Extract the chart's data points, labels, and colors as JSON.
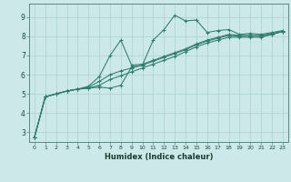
{
  "xlabel": "Humidex (Indice chaleur)",
  "bg_color": "#cce8e8",
  "grid_color": "#aad0d0",
  "line_color": "#2e7d6e",
  "xlim": [
    -0.5,
    23.5
  ],
  "ylim": [
    2.5,
    9.7
  ],
  "xticks": [
    0,
    1,
    2,
    3,
    4,
    5,
    6,
    7,
    8,
    9,
    10,
    11,
    12,
    13,
    14,
    15,
    16,
    17,
    18,
    19,
    20,
    21,
    22,
    23
  ],
  "yticks": [
    3,
    4,
    5,
    6,
    7,
    8,
    9
  ],
  "series1": [
    [
      0,
      2.75
    ],
    [
      1,
      4.85
    ],
    [
      2,
      5.0
    ],
    [
      3,
      5.15
    ],
    [
      4,
      5.25
    ],
    [
      5,
      5.3
    ],
    [
      6,
      5.35
    ],
    [
      7,
      5.3
    ],
    [
      8,
      5.45
    ],
    [
      9,
      6.4
    ],
    [
      10,
      6.5
    ],
    [
      11,
      7.8
    ],
    [
      12,
      8.35
    ],
    [
      13,
      9.1
    ],
    [
      14,
      8.8
    ],
    [
      15,
      8.85
    ],
    [
      16,
      8.2
    ],
    [
      17,
      8.3
    ],
    [
      18,
      8.35
    ],
    [
      19,
      8.1
    ],
    [
      20,
      8.15
    ],
    [
      21,
      8.1
    ],
    [
      22,
      8.2
    ],
    [
      23,
      8.3
    ]
  ],
  "series2": [
    [
      0,
      2.75
    ],
    [
      1,
      4.85
    ],
    [
      2,
      5.0
    ],
    [
      3,
      5.15
    ],
    [
      4,
      5.25
    ],
    [
      5,
      5.4
    ],
    [
      6,
      5.9
    ],
    [
      7,
      7.0
    ],
    [
      8,
      7.8
    ],
    [
      9,
      6.5
    ],
    [
      10,
      6.55
    ],
    [
      11,
      6.75
    ],
    [
      12,
      6.95
    ],
    [
      13,
      7.15
    ],
    [
      14,
      7.35
    ],
    [
      15,
      7.6
    ],
    [
      16,
      7.8
    ],
    [
      17,
      7.95
    ],
    [
      18,
      8.1
    ],
    [
      19,
      8.05
    ],
    [
      20,
      8.05
    ],
    [
      21,
      8.05
    ],
    [
      22,
      8.15
    ],
    [
      23,
      8.25
    ]
  ],
  "series3": [
    [
      0,
      2.75
    ],
    [
      1,
      4.85
    ],
    [
      2,
      5.0
    ],
    [
      3,
      5.15
    ],
    [
      4,
      5.25
    ],
    [
      5,
      5.35
    ],
    [
      6,
      5.65
    ],
    [
      7,
      6.0
    ],
    [
      8,
      6.2
    ],
    [
      9,
      6.35
    ],
    [
      10,
      6.5
    ],
    [
      11,
      6.7
    ],
    [
      12,
      6.9
    ],
    [
      13,
      7.1
    ],
    [
      14,
      7.3
    ],
    [
      15,
      7.55
    ],
    [
      16,
      7.75
    ],
    [
      17,
      7.9
    ],
    [
      18,
      8.05
    ],
    [
      19,
      8.0
    ],
    [
      20,
      8.0
    ],
    [
      21,
      8.0
    ],
    [
      22,
      8.1
    ],
    [
      23,
      8.25
    ]
  ],
  "series4": [
    [
      0,
      2.75
    ],
    [
      1,
      4.85
    ],
    [
      2,
      5.0
    ],
    [
      3,
      5.15
    ],
    [
      4,
      5.25
    ],
    [
      5,
      5.3
    ],
    [
      6,
      5.45
    ],
    [
      7,
      5.75
    ],
    [
      8,
      5.95
    ],
    [
      9,
      6.15
    ],
    [
      10,
      6.35
    ],
    [
      11,
      6.55
    ],
    [
      12,
      6.75
    ],
    [
      13,
      6.95
    ],
    [
      14,
      7.2
    ],
    [
      15,
      7.45
    ],
    [
      16,
      7.65
    ],
    [
      17,
      7.8
    ],
    [
      18,
      7.95
    ],
    [
      19,
      7.95
    ],
    [
      20,
      7.95
    ],
    [
      21,
      7.95
    ],
    [
      22,
      8.1
    ],
    [
      23,
      8.25
    ]
  ]
}
